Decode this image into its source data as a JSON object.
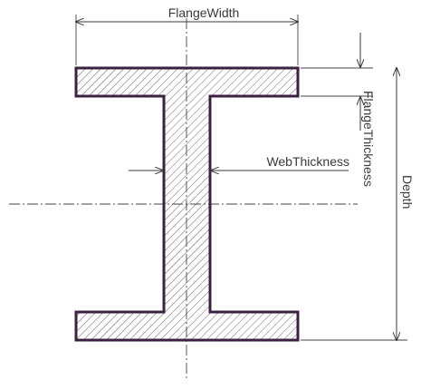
{
  "diagram": {
    "labels": {
      "flange_width": "FlangeWidth",
      "flange_thickness": "FlangeThickness",
      "web_thickness": "WebThickness",
      "depth": "Depth"
    },
    "colors": {
      "outline": "#3b2240",
      "hatch": "#555555",
      "dimension_lines": "#3a3a3a",
      "text": "#3a3a3a"
    },
    "shape": "I-beam cross section"
  }
}
